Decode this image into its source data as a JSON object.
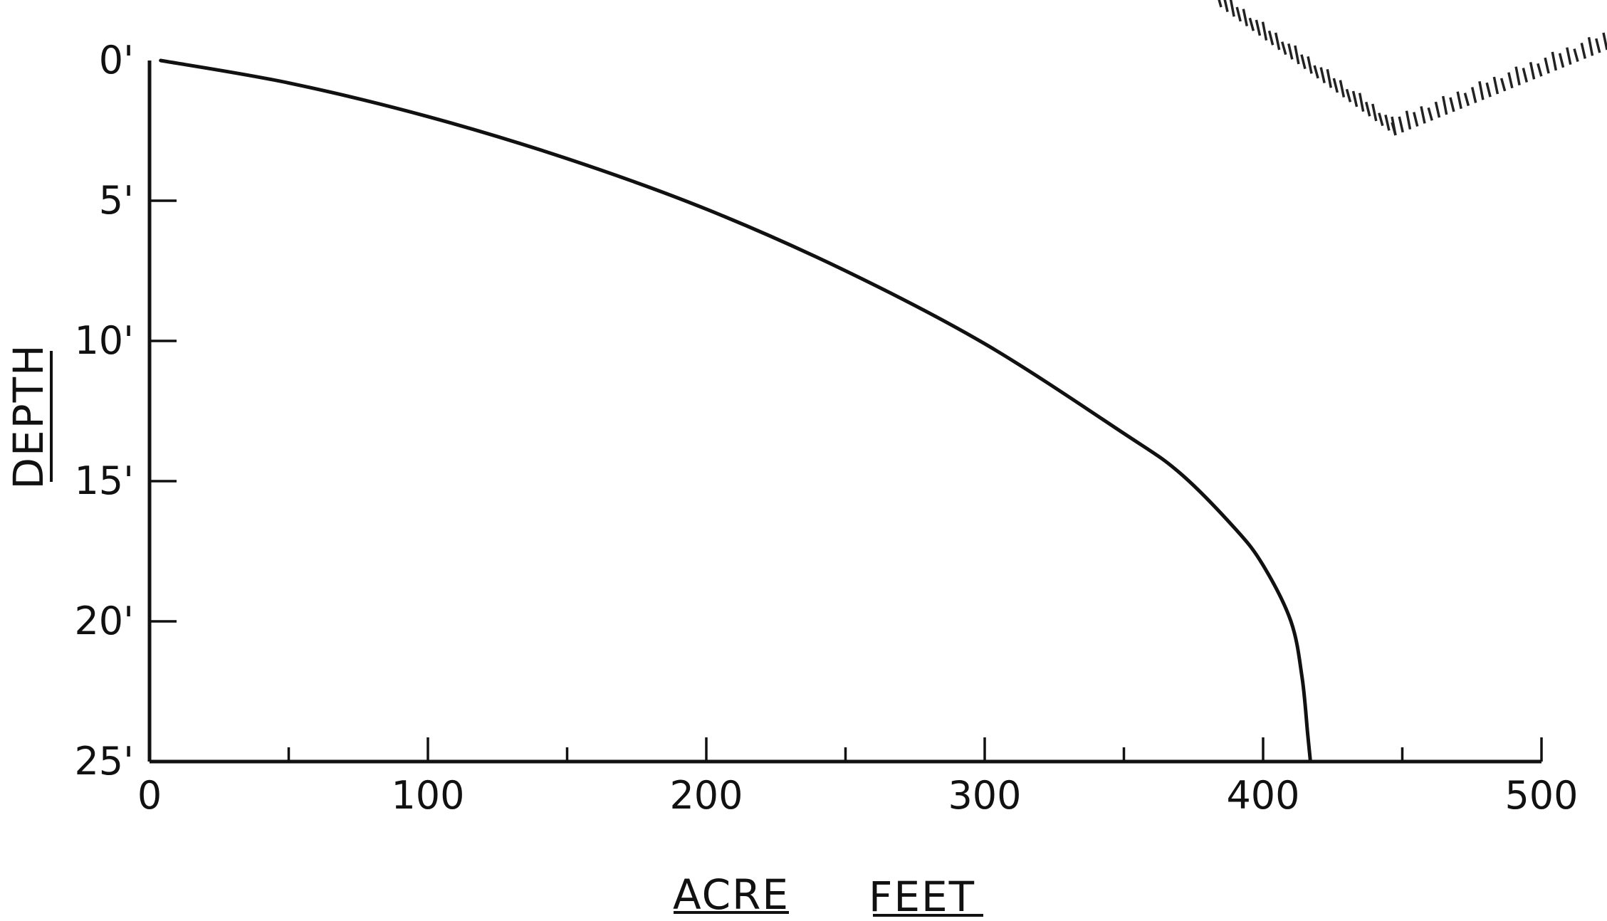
{
  "chart_data": {
    "type": "line",
    "xlabel_words": [
      "ACRE",
      "FEET"
    ],
    "ylabel": "DEPTH",
    "xlim": [
      0,
      500
    ],
    "ylim": [
      0,
      25
    ],
    "y_inverted": true,
    "grid": false,
    "x_ticks": [
      {
        "value": 0,
        "label": "0"
      },
      {
        "value": 100,
        "label": "100"
      },
      {
        "value": 200,
        "label": "200"
      },
      {
        "value": 300,
        "label": "300"
      },
      {
        "value": 400,
        "label": "400"
      },
      {
        "value": 500,
        "label": "500"
      }
    ],
    "x_minor_ticks": [
      50,
      150,
      250,
      350,
      450
    ],
    "y_ticks": [
      {
        "value": 0,
        "label": "0'"
      },
      {
        "value": 5,
        "label": "5'"
      },
      {
        "value": 10,
        "label": "10'"
      },
      {
        "value": 15,
        "label": "15'"
      },
      {
        "value": 20,
        "label": "20'"
      },
      {
        "value": 25,
        "label": "25'"
      }
    ],
    "series": [
      {
        "x": [
          4,
          50,
          100,
          150,
          200,
          250,
          300,
          350,
          370,
          390,
          400,
          410,
          414,
          416,
          417
        ],
        "y": [
          0,
          0.8,
          2.0,
          3.5,
          5.3,
          7.5,
          10.1,
          13.3,
          14.7,
          16.7,
          18.0,
          20.0,
          22.0,
          24.0,
          25.0
        ]
      }
    ]
  }
}
